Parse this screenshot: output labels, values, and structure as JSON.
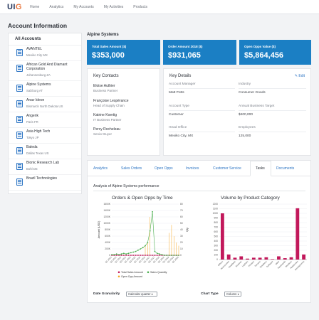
{
  "app": {
    "logo": {
      "main": "UI",
      "accent": "G"
    },
    "nav": [
      "Home",
      "Analytics",
      "My Accounts",
      "My Activities",
      "Products"
    ]
  },
  "page_title": "Account Information",
  "sidebar": {
    "header": "All Accounts",
    "accounts": [
      {
        "name": "AVANTEL",
        "location": "Mexiko City MX"
      },
      {
        "name": "African Gold And Diamant Corporation",
        "location": "Johannesburg ZA"
      },
      {
        "name": "Alpine Systems",
        "location": "Salzburg AT"
      },
      {
        "name": "Anav Ideon",
        "location": "Bismarck North Dakota US"
      },
      {
        "name": "Angerik",
        "location": "Paris FR"
      },
      {
        "name": "Asia High Tech",
        "location": "Tokyo JP"
      },
      {
        "name": "Baleda",
        "location": "Dallas Texas US"
      },
      {
        "name": "Bionic Research Lab",
        "location": "Bohl DE"
      },
      {
        "name": "Brazil Technologies",
        "location": ""
      }
    ]
  },
  "account": {
    "title": "Alpine Systems",
    "kpis": [
      {
        "label": "Total Sales Amount ($)",
        "value": "$353,000"
      },
      {
        "label": "Order Amount 2018 ($)",
        "value": "$931,065"
      },
      {
        "label": "Open Opps Value ($)",
        "value": "$5,864,456"
      }
    ],
    "contacts_title": "Key Contacts",
    "contacts": [
      {
        "name": "Eloise Authier",
        "title": "Business Partner"
      },
      {
        "name": "Françoise Lespérance",
        "title": "Head of Supply Chain"
      },
      {
        "name": "Katrine Koertig",
        "title": "IT Business Partner"
      },
      {
        "name": "Percy Rocheleau",
        "title": "Senior Buyer"
      }
    ],
    "details_title": "Key Details",
    "edit_label": "Edit",
    "details": [
      {
        "label": "Account Manager",
        "value": "Matt Potts"
      },
      {
        "label": "Industry",
        "value": "Consumer Goods"
      },
      {
        "label": "Account Type",
        "value": "Customer"
      },
      {
        "label": "Annual Business Target",
        "value": "$400,000"
      },
      {
        "label": "Head Office",
        "value": "Mexiko City, MX"
      },
      {
        "label": "Employees",
        "value": "125,000"
      }
    ]
  },
  "tabs": [
    "Analytics",
    "Sales Orders",
    "Open Opps",
    "Invoices",
    "Customer Service",
    "Tasks",
    "Documents"
  ],
  "active_tab": "Tasks",
  "performance_title": "Analysis of Alpine Systems performance",
  "controls": {
    "date_granularity_label": "Date Granularity",
    "date_granularity_value": "Calendar quarter",
    "chart_type_label": "Chart Type",
    "chart_type_value": "Column"
  },
  "chart_data": [
    {
      "type": "line",
      "title": "Orders & Open Opps by Time",
      "ylabel": "Amount (USD)",
      "y2label": "Qty",
      "ylim": [
        0,
        1600000
      ],
      "y2lim": [
        0,
        80
      ],
      "yticks": [
        "0",
        "200K",
        "400K",
        "600K",
        "800K",
        "1000K",
        "1200K",
        "1400K",
        "1600K"
      ],
      "y2ticks": [
        "0",
        "10",
        "20",
        "30",
        "40",
        "50",
        "60",
        "70",
        "80"
      ],
      "x": [
        "Q1 2013",
        "Q2 2013",
        "Q3 2013",
        "Q4 2013",
        "Q1 2014",
        "Q2 2014",
        "Q3 2014",
        "Q4 2014",
        "Q1 2015",
        "Q2 2015",
        "Q3 2015",
        "Q4 2015",
        "Q1 2016",
        "Q2 2016",
        "Q3 2016",
        "Q4 2016",
        "Q1 2017",
        "Q2 2017",
        "Q3 2017",
        "Q4 2017",
        "Q1 2018",
        "Q2 2018",
        "Q3 2018",
        "Q4 2018",
        "Q1 2019",
        "Q2 2019",
        "Q3 2019",
        "Q4 2019",
        "Q1 2020"
      ],
      "series": [
        {
          "name": "Total Sales Amount",
          "color": "#c2185b",
          "axis": "y",
          "values": [
            0,
            0,
            0,
            0,
            0,
            0,
            0,
            0,
            0,
            0,
            0,
            0,
            0,
            0,
            0,
            0,
            0,
            0,
            0,
            0,
            0,
            0,
            0,
            0,
            0,
            0,
            0,
            0,
            0
          ]
        },
        {
          "name": "Sales Quantity",
          "color": "#4caf50",
          "axis": "y2",
          "values": [
            1,
            1,
            2,
            1,
            2,
            3,
            2,
            3,
            4,
            5,
            6,
            8,
            10,
            12,
            15,
            20,
            38,
            68,
            6,
            3,
            2,
            1,
            0,
            0,
            0,
            0,
            0,
            0,
            0
          ]
        },
        {
          "name": "Open Opp Amount",
          "color": "#f5a623",
          "axis": "y",
          "values": [
            0,
            0,
            0,
            0,
            0,
            0,
            0,
            0,
            0,
            0,
            0,
            0,
            0,
            0,
            0,
            0,
            0,
            0,
            0,
            0,
            0,
            0,
            0,
            0,
            700000,
            950000,
            600000,
            400000,
            300000
          ]
        }
      ],
      "extra_bars": [
        {
          "x": "Q1 2017",
          "value": 1200000,
          "color": "#f5a623"
        },
        {
          "x": "Q3 2016",
          "value": 300000,
          "color": "#f5a623"
        },
        {
          "x": "Q4 2016",
          "value": 400000,
          "color": "#f5a623"
        }
      ]
    },
    {
      "type": "bar",
      "title": "Volume by Product Category",
      "ylim": [
        0,
        1200
      ],
      "yticks": [
        "0",
        "100",
        "200",
        "300",
        "400",
        "500",
        "600",
        "700",
        "800",
        "900",
        "1000",
        "1100",
        "1200"
      ],
      "categories": [
        "Others",
        "Accessories",
        "Headsets",
        "Scanner",
        "Laptops",
        "Printers",
        "Servers",
        "Speakers",
        "Software",
        "Mice",
        "Keyboards",
        "Monitors",
        "Notebooks",
        "Smartphones"
      ],
      "values": [
        1000,
        110,
        40,
        70,
        20,
        40,
        40,
        50,
        10,
        70,
        30,
        50,
        1110,
        110
      ],
      "color": "#c2185b"
    }
  ]
}
